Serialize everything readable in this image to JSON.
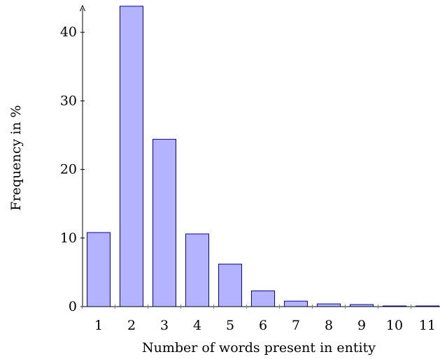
{
  "chart_data": {
    "type": "bar",
    "xlabel": "Number of words present in entity",
    "ylabel": "Frequency in %",
    "categories": [
      "1",
      "2",
      "3",
      "4",
      "5",
      "6",
      "7",
      "8",
      "9",
      "10",
      "11"
    ],
    "values": [
      10.8,
      43.8,
      24.4,
      10.6,
      6.2,
      2.3,
      0.8,
      0.4,
      0.3,
      0.1,
      0.1
    ],
    "ylim": [
      0,
      44
    ],
    "yticks": [
      "0",
      "10",
      "20",
      "30",
      "40"
    ],
    "grid": false,
    "colors": {
      "bar_fill": "#b3b3ff",
      "bar_stroke": "#0000cc",
      "axis": "#000000"
    }
  }
}
